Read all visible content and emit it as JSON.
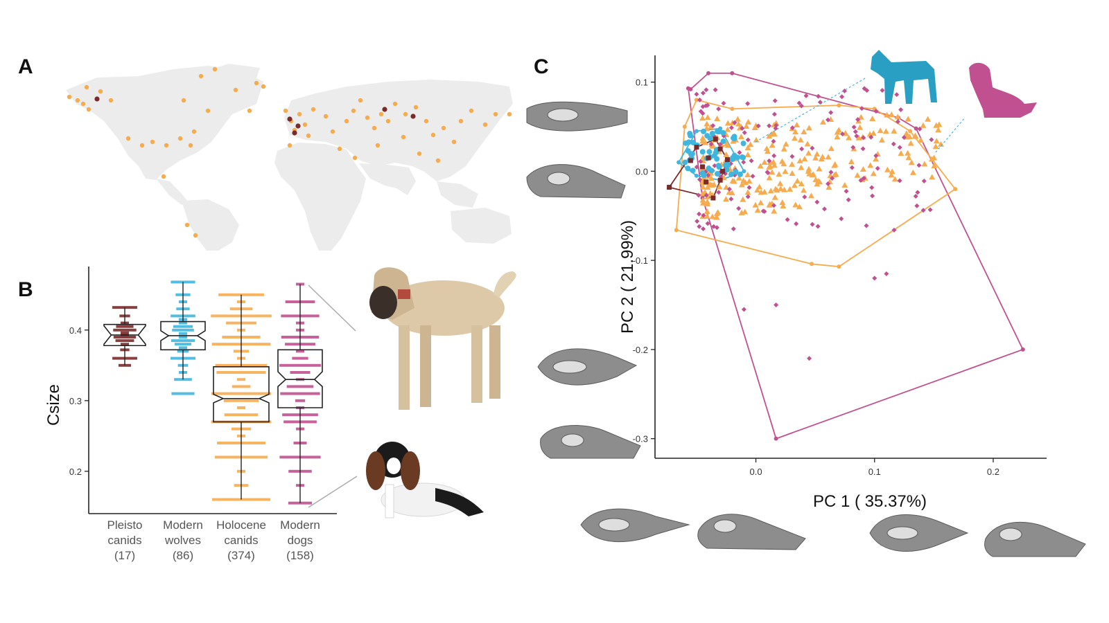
{
  "panels": {
    "a": "A",
    "b": "B",
    "c": "C"
  },
  "colors": {
    "pleisto": "#7a2a2a",
    "wolves": "#3fb6dd",
    "holocene": "#f6ab4e",
    "dogs": "#c0508f",
    "land": "#ececec",
    "wolf_icon": "#2a9fc4",
    "dog_icon": "#c0508f"
  },
  "icons": {
    "wolf": "wolf-silhouette-icon",
    "dog": "dog-silhouette-icon",
    "photo_large_dog": "large-dog-photo",
    "photo_small_dog": "small-dog-photo",
    "skull": "skull-shape-icon"
  },
  "chart_data": [
    {
      "type": "map",
      "panel": "A",
      "description": "Specimen locations on a world map",
      "series": [
        {
          "name": "Pleisto canids",
          "color": "#7a2a2a"
        },
        {
          "name": "Holocene canids",
          "color": "#f6ab4e"
        }
      ]
    },
    {
      "type": "box",
      "panel": "B",
      "ylabel": "Csize",
      "yticks": [
        "0.2",
        "0.3",
        "0.4"
      ],
      "ylim": [
        0.14,
        0.49
      ],
      "categories": [
        {
          "line1": "Pleisto",
          "line2": "canids",
          "count": "(17)",
          "color": "#7a2a2a",
          "min": 0.35,
          "q1": 0.378,
          "median": 0.393,
          "q3": 0.408,
          "max": 0.432,
          "notch": [
            0.38,
            0.406
          ],
          "points": [
            0.35,
            0.36,
            0.372,
            0.38,
            0.385,
            0.39,
            0.393,
            0.396,
            0.4,
            0.405,
            0.41,
            0.42,
            0.432
          ]
        },
        {
          "line1": "Modern",
          "line2": "wolves",
          "count": "(86)",
          "color": "#3fb6dd",
          "min": 0.33,
          "q1": 0.372,
          "median": 0.392,
          "q3": 0.412,
          "max": 0.468,
          "notch": [
            0.385,
            0.399
          ],
          "points": [
            0.31,
            0.33,
            0.34,
            0.35,
            0.36,
            0.37,
            0.375,
            0.38,
            0.385,
            0.39,
            0.395,
            0.4,
            0.405,
            0.41,
            0.415,
            0.42,
            0.43,
            0.44,
            0.45,
            0.468
          ]
        },
        {
          "line1": "Holocene",
          "line2": "canids",
          "count": "(374)",
          "color": "#f6ab4e",
          "min": 0.16,
          "q1": 0.27,
          "median": 0.303,
          "q3": 0.348,
          "max": 0.45,
          "notch": [
            0.297,
            0.309
          ],
          "points": [
            0.16,
            0.18,
            0.2,
            0.22,
            0.24,
            0.25,
            0.26,
            0.27,
            0.28,
            0.29,
            0.3,
            0.31,
            0.32,
            0.33,
            0.34,
            0.35,
            0.36,
            0.37,
            0.38,
            0.39,
            0.4,
            0.41,
            0.42,
            0.43,
            0.44,
            0.45
          ]
        },
        {
          "line1": "Modern",
          "line2": "dogs",
          "count": "(158)",
          "color": "#c0508f",
          "min": 0.155,
          "q1": 0.29,
          "median": 0.33,
          "q3": 0.372,
          "max": 0.465,
          "notch": [
            0.32,
            0.341
          ],
          "points": [
            0.155,
            0.18,
            0.2,
            0.22,
            0.24,
            0.26,
            0.27,
            0.28,
            0.29,
            0.3,
            0.31,
            0.32,
            0.33,
            0.34,
            0.35,
            0.36,
            0.37,
            0.38,
            0.39,
            0.4,
            0.41,
            0.42,
            0.44,
            0.465
          ]
        }
      ]
    },
    {
      "type": "scatter",
      "panel": "C",
      "xlabel": "PC 1 ( 35.37%)",
      "ylabel": "PC 2 ( 21.99%)",
      "xlim": [
        -0.085,
        0.245
      ],
      "ylim": [
        -0.322,
        0.13
      ],
      "xticks": [
        {
          "label": "0.0",
          "value": 0.0
        },
        {
          "label": "0.1",
          "value": 0.1
        },
        {
          "label": "0.2",
          "value": 0.2
        }
      ],
      "yticks": [
        {
          "label": "0.1",
          "value": 0.1
        },
        {
          "label": "0.0",
          "value": 0.0
        },
        {
          "label": "-0.1",
          "value": -0.1
        },
        {
          "label": "-0.2",
          "value": -0.2
        },
        {
          "label": "-0.3",
          "value": -0.3
        }
      ],
      "hulls": [
        {
          "name": "Modern dogs",
          "color": "#c0508f",
          "points": [
            [
              -0.055,
              0.092
            ],
            [
              -0.04,
              0.11
            ],
            [
              -0.02,
              0.11
            ],
            [
              0.12,
              0.06
            ],
            [
              0.135,
              0.048
            ],
            [
              0.225,
              -0.2
            ],
            [
              0.017,
              -0.3
            ],
            [
              -0.045,
              -0.03
            ],
            [
              -0.057,
              0.093
            ]
          ]
        },
        {
          "name": "Holocene canids",
          "color": "#f6ab4e",
          "points": [
            [
              -0.05,
              0.08
            ],
            [
              -0.02,
              0.07
            ],
            [
              0.07,
              0.074
            ],
            [
              0.1,
              0.07
            ],
            [
              0.13,
              0.045
            ],
            [
              0.168,
              -0.02
            ],
            [
              0.07,
              -0.107
            ],
            [
              0.047,
              -0.104
            ],
            [
              -0.067,
              -0.066
            ],
            [
              -0.06,
              0.05
            ],
            [
              -0.05,
              0.08
            ]
          ]
        },
        {
          "name": "Modern wolves",
          "color": "#3fb6dd",
          "points": [
            [
              -0.065,
              0.01
            ],
            [
              -0.05,
              0.045
            ],
            [
              -0.03,
              0.048
            ],
            [
              -0.01,
              0.0
            ],
            [
              -0.03,
              -0.01
            ],
            [
              -0.05,
              -0.005
            ],
            [
              -0.065,
              0.01
            ]
          ]
        },
        {
          "name": "Pleisto canids",
          "color": "#7a2a2a",
          "points": [
            [
              -0.073,
              -0.018
            ],
            [
              -0.05,
              0.027
            ],
            [
              -0.034,
              0.036
            ],
            [
              -0.024,
              0.013
            ],
            [
              -0.03,
              -0.01
            ],
            [
              -0.036,
              -0.03
            ],
            [
              -0.073,
              -0.018
            ]
          ]
        }
      ]
    }
  ]
}
